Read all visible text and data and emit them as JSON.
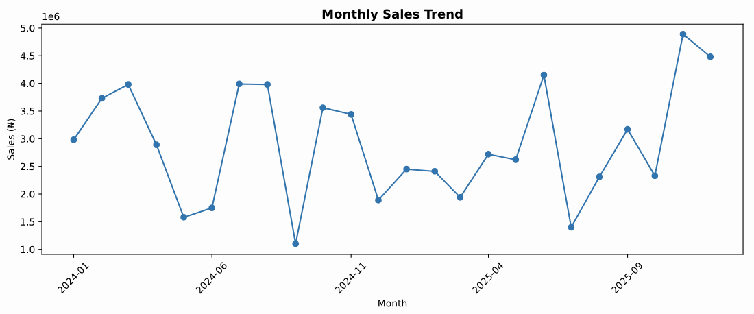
{
  "chart_data": {
    "type": "line",
    "title": "Monthly Sales Trend",
    "xlabel": "Month",
    "ylabel": "Sales (₦)",
    "x": [
      "2024-01",
      "2024-02",
      "2024-03",
      "2024-04",
      "2024-05",
      "2024-06",
      "2024-07",
      "2024-08",
      "2024-09",
      "2024-10",
      "2024-11",
      "2024-12",
      "2025-01",
      "2025-02",
      "2025-03",
      "2025-04",
      "2025-05",
      "2025-06",
      "2025-07",
      "2025-08",
      "2025-09",
      "2025-10",
      "2025-11",
      "2025-12"
    ],
    "series": [
      {
        "color": "#3274ad",
        "values": [
          2.98,
          3.73,
          3.98,
          2.89,
          1.58,
          1.75,
          3.99,
          3.98,
          1.1,
          3.56,
          3.44,
          1.89,
          2.45,
          2.41,
          1.94,
          2.72,
          2.62,
          4.15,
          1.4,
          2.31,
          3.17,
          2.33,
          4.89,
          4.48
        ]
      }
    ],
    "xlim": [
      "2023-11-27",
      "2026-01-06"
    ],
    "xticks": [
      {
        "value": "2024-01",
        "label": "2024-01"
      },
      {
        "value": "2024-06",
        "label": "2024-06"
      },
      {
        "value": "2024-11",
        "label": "2024-11"
      },
      {
        "value": "2025-04",
        "label": "2025-04"
      },
      {
        "value": "2025-09",
        "label": "2025-09"
      }
    ],
    "ylim": [
      0.91,
      5.07
    ],
    "yticks": [
      {
        "value": 1.0,
        "label": "1.0"
      },
      {
        "value": 1.5,
        "label": "1.5"
      },
      {
        "value": 2.0,
        "label": "2.0"
      },
      {
        "value": 2.5,
        "label": "2.5"
      },
      {
        "value": 3.0,
        "label": "3.0"
      },
      {
        "value": 3.5,
        "label": "3.5"
      },
      {
        "value": 4.0,
        "label": "4.0"
      },
      {
        "value": 4.5,
        "label": "4.5"
      },
      {
        "value": 5.0,
        "label": "5.0"
      }
    ],
    "annotations": [
      "1e6"
    ],
    "marker": "circle",
    "line_style": "solid",
    "grid": false,
    "legend": false
  }
}
